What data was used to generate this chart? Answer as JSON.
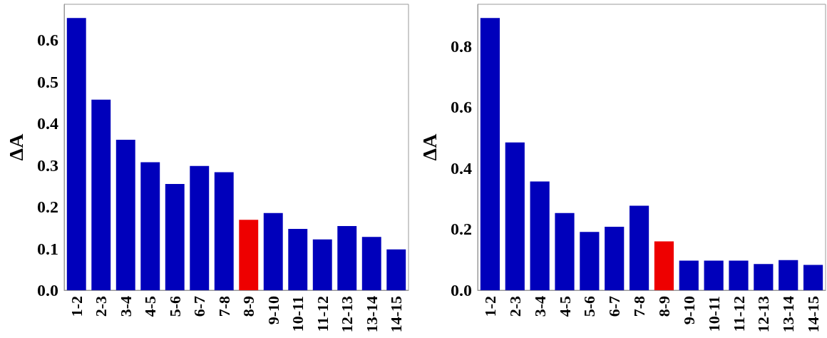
{
  "chart_data": [
    {
      "type": "bar",
      "ylabel": "ΔA",
      "categories": [
        "1-2",
        "2-3",
        "3-4",
        "4-5",
        "5-6",
        "6-7",
        "7-8",
        "8-9",
        "9-10",
        "10-11",
        "11-12",
        "12-13",
        "13-14",
        "14-15"
      ],
      "values": [
        0.653,
        0.457,
        0.361,
        0.307,
        0.255,
        0.298,
        0.283,
        0.169,
        0.185,
        0.147,
        0.122,
        0.154,
        0.128,
        0.098
      ],
      "colors": [
        "#0000bb",
        "#0000bb",
        "#0000bb",
        "#0000bb",
        "#0000bb",
        "#0000bb",
        "#0000bb",
        "#ee0000",
        "#0000bb",
        "#0000bb",
        "#0000bb",
        "#0000bb",
        "#0000bb",
        "#0000bb"
      ],
      "ylim": [
        0,
        0.686
      ],
      "yticks": [
        {
          "value": 0,
          "label": "0.0"
        },
        0.1,
        0.2,
        0.3,
        0.4,
        0.5,
        0.6
      ],
      "grid": false
    },
    {
      "type": "bar",
      "ylabel": "ΔA",
      "categories": [
        "1-2",
        "2-3",
        "3-4",
        "4-5",
        "5-6",
        "6-7",
        "7-8",
        "8-9",
        "9-10",
        "10-11",
        "11-12",
        "12-13",
        "13-14",
        "14-15"
      ],
      "values": [
        0.893,
        0.485,
        0.357,
        0.253,
        0.191,
        0.208,
        0.277,
        0.16,
        0.097,
        0.097,
        0.097,
        0.086,
        0.099,
        0.083
      ],
      "colors": [
        "#0000bb",
        "#0000bb",
        "#0000bb",
        "#0000bb",
        "#0000bb",
        "#0000bb",
        "#0000bb",
        "#ee0000",
        "#0000bb",
        "#0000bb",
        "#0000bb",
        "#0000bb",
        "#0000bb",
        "#0000bb"
      ],
      "ylim": [
        0,
        0.938
      ],
      "yticks": [
        {
          "value": 0,
          "label": "0.0"
        },
        0.2,
        0.4,
        0.6,
        0.8
      ],
      "grid": false
    }
  ]
}
